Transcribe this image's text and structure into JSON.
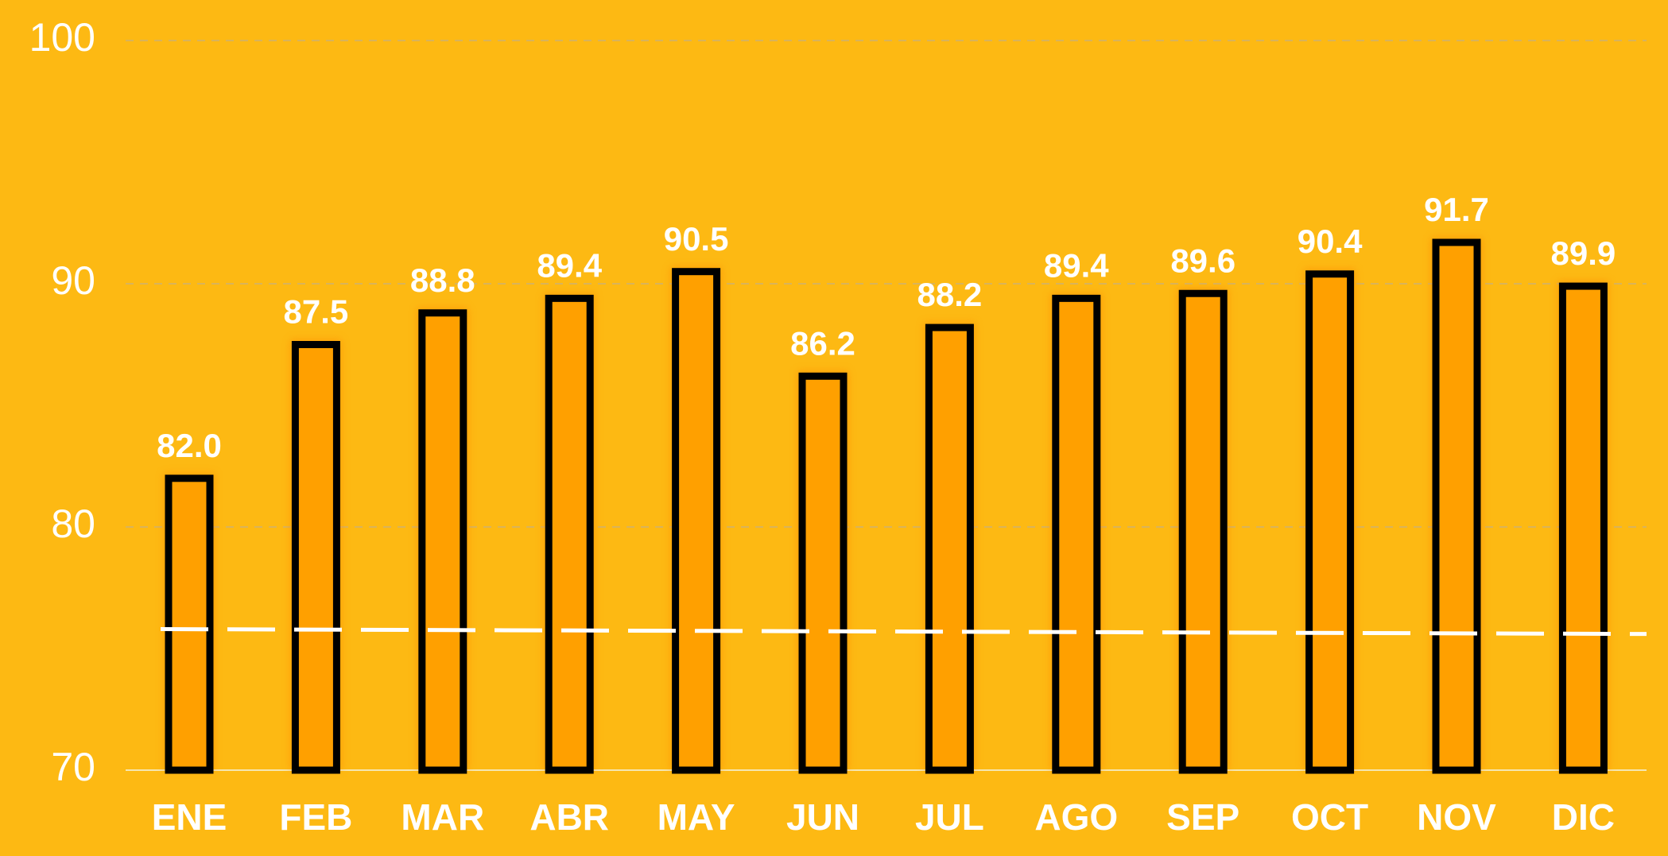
{
  "chart_data": {
    "type": "bar",
    "categories": [
      "ENE",
      "FEB",
      "MAR",
      "ABR",
      "MAY",
      "JUN",
      "JUL",
      "AGO",
      "SEP",
      "OCT",
      "NOV",
      "DIC"
    ],
    "values": [
      82.0,
      87.5,
      88.8,
      89.4,
      90.5,
      86.2,
      88.2,
      89.4,
      89.6,
      90.4,
      91.7,
      89.9
    ],
    "value_labels": [
      "82.0",
      "87.5",
      "88.8",
      "89.4",
      "90.5",
      "86.2",
      "88.2",
      "89.4",
      "89.6",
      "90.4",
      "91.7",
      "89.9"
    ],
    "color": "#ffa000",
    "edge_color": "#000000",
    "ylim": [
      70,
      100
    ],
    "yticks": [
      70,
      80,
      90,
      100
    ],
    "grid": true,
    "trend_line": {
      "values": [
        75.8,
        75.6
      ],
      "color": "#ffffff"
    }
  }
}
